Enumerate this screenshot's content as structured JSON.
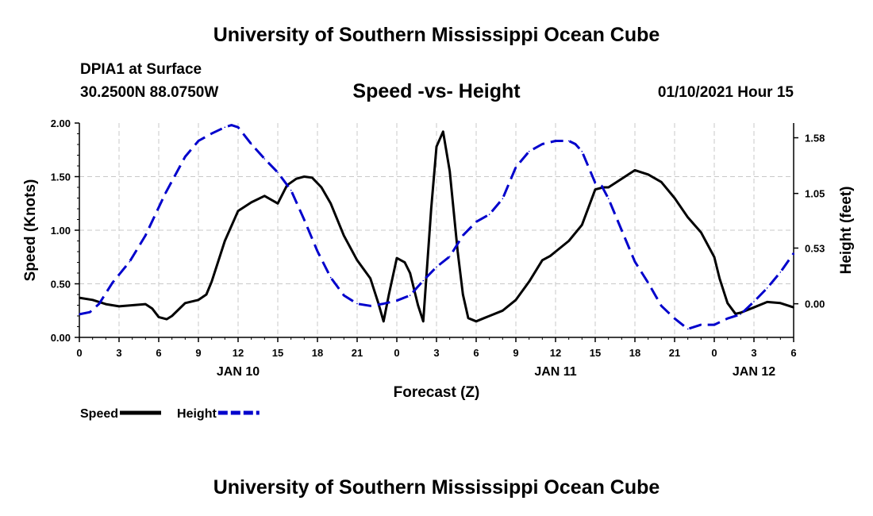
{
  "header": {
    "top_title": "University of Southern Mississippi Ocean Cube",
    "bottom_title": "University of Southern Mississippi Ocean Cube",
    "station": "DPIA1 at Surface",
    "coords": "30.2500N 88.0750W",
    "datetime": "01/10/2021 Hour 15"
  },
  "chart_data": {
    "type": "line",
    "title": "Speed -vs- Height",
    "xlabel": "Forecast (Z)",
    "ylabel_left": "Speed (Knots)",
    "ylabel_right": "Height (feet)",
    "x_unit": "hours from 00Z Jan 10",
    "xlim": [
      0,
      54
    ],
    "ylim_left": [
      0,
      2.0
    ],
    "ylim_right": [
      -0.32,
      1.72
    ],
    "x_ticks": [
      {
        "x": 0,
        "label": "0"
      },
      {
        "x": 3,
        "label": "3"
      },
      {
        "x": 6,
        "label": "6"
      },
      {
        "x": 9,
        "label": "9"
      },
      {
        "x": 12,
        "label": "12"
      },
      {
        "x": 15,
        "label": "15"
      },
      {
        "x": 18,
        "label": "18"
      },
      {
        "x": 21,
        "label": "21"
      },
      {
        "x": 24,
        "label": "0"
      },
      {
        "x": 27,
        "label": "3"
      },
      {
        "x": 30,
        "label": "6"
      },
      {
        "x": 33,
        "label": "9"
      },
      {
        "x": 36,
        "label": "12"
      },
      {
        "x": 39,
        "label": "15"
      },
      {
        "x": 42,
        "label": "18"
      },
      {
        "x": 45,
        "label": "21"
      },
      {
        "x": 48,
        "label": "0"
      },
      {
        "x": 51,
        "label": "3"
      },
      {
        "x": 54,
        "label": "6"
      }
    ],
    "day_labels": [
      {
        "x": 12,
        "label": "JAN 10"
      },
      {
        "x": 36,
        "label": "JAN 11"
      },
      {
        "x": 51,
        "label": "JAN 12"
      }
    ],
    "y_ticks_left": [
      {
        "value": 0.0,
        "label": "0.00"
      },
      {
        "value": 0.5,
        "label": "0.50"
      },
      {
        "value": 1.0,
        "label": "1.00"
      },
      {
        "value": 1.5,
        "label": "1.50"
      },
      {
        "value": 2.0,
        "label": "2.00"
      }
    ],
    "y_ticks_right": [
      {
        "value": 0.0,
        "label": "0.00"
      },
      {
        "value": 0.53,
        "label": "0.53"
      },
      {
        "value": 1.05,
        "label": "1.05"
      },
      {
        "value": 1.58,
        "label": "1.58"
      }
    ],
    "series": [
      {
        "name": "Speed",
        "axis": "left",
        "color": "#000000",
        "dash": "solid",
        "x": [
          0,
          1,
          2,
          3,
          4,
          5,
          5.5,
          6,
          6.6,
          7,
          8,
          9,
          9.6,
          10,
          11,
          12,
          13,
          14,
          15,
          15.7,
          16.4,
          17,
          17.6,
          18.3,
          19,
          20,
          21,
          22,
          22.6,
          23,
          23.4,
          24,
          24.6,
          25,
          25.6,
          26,
          26.6,
          27,
          27.5,
          28,
          28.6,
          29,
          29.4,
          30,
          30.6,
          31,
          32,
          33,
          34,
          35,
          35.6,
          36,
          37,
          38,
          39,
          39.6,
          40,
          41,
          42,
          43,
          44,
          45,
          46,
          47,
          48,
          48.4,
          49,
          49.6,
          50,
          51,
          52,
          53,
          54
        ],
        "values": [
          0.37,
          0.35,
          0.31,
          0.29,
          0.3,
          0.31,
          0.27,
          0.19,
          0.17,
          0.2,
          0.32,
          0.35,
          0.4,
          0.52,
          0.9,
          1.18,
          1.26,
          1.32,
          1.25,
          1.42,
          1.48,
          1.5,
          1.49,
          1.4,
          1.25,
          0.95,
          0.72,
          0.55,
          0.32,
          0.15,
          0.4,
          0.74,
          0.7,
          0.6,
          0.3,
          0.15,
          1.2,
          1.78,
          1.92,
          1.55,
          0.8,
          0.4,
          0.18,
          0.15,
          0.18,
          0.2,
          0.25,
          0.35,
          0.52,
          0.72,
          0.76,
          0.8,
          0.9,
          1.05,
          1.38,
          1.4,
          1.4,
          1.48,
          1.56,
          1.52,
          1.45,
          1.3,
          1.12,
          0.98,
          0.75,
          0.55,
          0.32,
          0.22,
          0.23,
          0.28,
          0.33,
          0.32,
          0.28
        ]
      },
      {
        "name": "Height",
        "axis": "right",
        "color": "#0000cc",
        "dash": "dashed",
        "x": [
          0,
          0.8,
          1.5,
          2.5,
          3.8,
          5,
          6.5,
          8,
          9,
          10,
          11,
          11.5,
          12,
          13,
          14,
          15,
          16,
          17,
          18,
          19,
          20,
          21,
          22,
          23,
          24,
          25,
          26,
          27,
          28,
          29,
          30,
          31,
          32,
          33,
          34,
          35,
          36,
          37,
          37.5,
          38,
          39,
          39.5,
          40,
          41,
          42,
          43,
          44,
          45,
          46,
          47,
          47.6,
          48,
          49,
          50,
          51,
          52,
          53,
          54
        ],
        "values": [
          -0.1,
          -0.08,
          0.0,
          0.2,
          0.4,
          0.65,
          1.05,
          1.4,
          1.55,
          1.62,
          1.68,
          1.7,
          1.68,
          1.52,
          1.38,
          1.25,
          1.08,
          0.8,
          0.5,
          0.25,
          0.08,
          0.0,
          -0.02,
          0.0,
          0.03,
          0.08,
          0.22,
          0.35,
          0.45,
          0.65,
          0.78,
          0.85,
          1.0,
          1.3,
          1.45,
          1.52,
          1.55,
          1.55,
          1.52,
          1.45,
          1.15,
          1.12,
          1.0,
          0.7,
          0.4,
          0.2,
          -0.02,
          -0.14,
          -0.24,
          -0.2,
          -0.2,
          -0.2,
          -0.14,
          -0.1,
          0.02,
          0.15,
          0.3,
          0.48
        ]
      }
    ],
    "legend": [
      {
        "label": "Speed",
        "color": "#000000",
        "dash": "solid"
      },
      {
        "label": "Height",
        "color": "#0000cc",
        "dash": "dashed"
      }
    ]
  }
}
